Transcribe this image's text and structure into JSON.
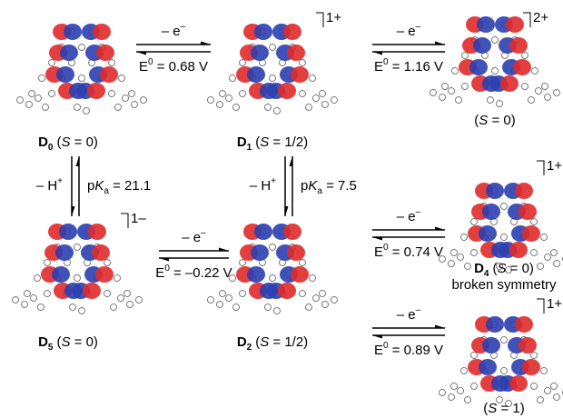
{
  "molecules": [
    {
      "name": "D",
      "sub": "0",
      "state": [
        "(",
        "S",
        " = 0)"
      ]
    },
    {
      "name": "D",
      "sub": "1",
      "state": [
        "(",
        "S",
        " = 1/2)"
      ],
      "charge": "1+"
    },
    {
      "state": [
        "(",
        "S",
        " = 0)"
      ],
      "charge": "2+"
    },
    {
      "name": "D",
      "sub": "5",
      "state": [
        "(",
        "S",
        " = 0)"
      ],
      "charge": "1–"
    },
    {
      "name": "D",
      "sub": "2",
      "state": [
        "(",
        "S",
        " = 1/2)"
      ]
    },
    {
      "name": "D",
      "sub": "4",
      "state": [
        "(",
        "S",
        " = 0)"
      ],
      "charge": "1+",
      "note": "broken symmetry"
    },
    {
      "state": [
        "(",
        "S",
        " = 1)"
      ],
      "charge": "1+"
    }
  ],
  "oxidations": [
    {
      "label": [
        "– e",
        "–"
      ],
      "potential": [
        "E",
        "0",
        " = 0.68 V"
      ]
    },
    {
      "label": [
        "– e",
        "–"
      ],
      "potential": [
        "E",
        "0",
        " = 1.16 V"
      ]
    },
    {
      "label": [
        "– e",
        "–"
      ],
      "potential": [
        "E",
        "0",
        " = –0.22 V"
      ]
    },
    {
      "label": [
        "– e",
        "–"
      ],
      "potential": [
        "E",
        "0",
        " = 0.74 V"
      ]
    },
    {
      "label": [
        "– e",
        "–"
      ],
      "potential": [
        "E",
        "0",
        " = 0.89 V"
      ]
    }
  ],
  "deprotonations": [
    {
      "label": [
        "– H",
        "+"
      ],
      "pka": [
        "p",
        "K",
        "a",
        " = 21.1"
      ]
    },
    {
      "label": [
        "– H",
        "+"
      ],
      "pka": [
        "p",
        "K",
        "a",
        " = 7.5"
      ]
    }
  ]
}
